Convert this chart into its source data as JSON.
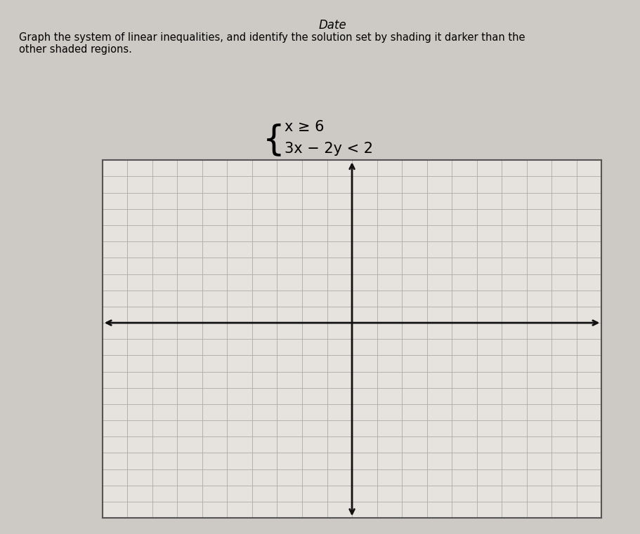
{
  "title_line1": "Graph the system of linear inequalities, and identify the solution set by shading it darker than the",
  "title_line2": "other shaded regions.",
  "date_label": "Date",
  "ineq_line1": "x ≥ 6",
  "ineq_line2": "3x − 2y < 2",
  "xmin": -10,
  "xmax": 10,
  "ymin": -12,
  "ymax": 10,
  "grid_minor_color": "#aaaaaa",
  "grid_major_color": "#888888",
  "grid_linewidth": 0.6,
  "axis_color": "#111111",
  "axis_linewidth": 2.0,
  "border_color": "#555555",
  "border_linewidth": 1.5,
  "background_color": "#cdc9c4",
  "plot_bg_color": "#e6e2de",
  "title_fontsize": 10.5,
  "date_fontsize": 12,
  "formula_fontsize": 15
}
